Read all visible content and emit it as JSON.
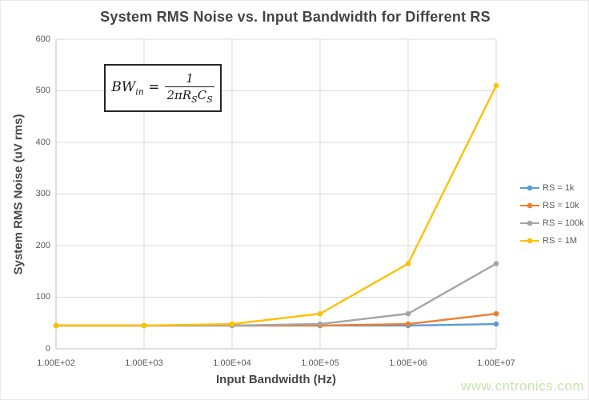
{
  "page": {
    "watermark": "www.cntronics.com"
  },
  "chart_data": {
    "type": "line",
    "title": "System RMS Noise vs. Input Bandwidth for Different RS",
    "xlabel": "Input Bandwidth (Hz)",
    "ylabel": "System RMS Noise (uV rms)",
    "x_scale": "log",
    "x": [
      100,
      1000,
      10000,
      100000,
      1000000,
      10000000
    ],
    "x_tick_labels": [
      "1.00E+02",
      "1.00E+03",
      "1.00E+04",
      "1.00E+05",
      "1.00E+06",
      "1.00E+07"
    ],
    "ylim": [
      0,
      600
    ],
    "y_ticks": [
      0,
      100,
      200,
      300,
      400,
      500,
      600
    ],
    "grid": true,
    "legend_position": "right",
    "marker": "circle",
    "series": [
      {
        "name": "RS = 1k",
        "color": "#5B9BD5",
        "values": [
          45,
          45,
          45,
          45,
          45,
          48
        ]
      },
      {
        "name": "RS = 10k",
        "color": "#ED7D31",
        "values": [
          45,
          45,
          45,
          45,
          48,
          68
        ]
      },
      {
        "name": "RS = 100k",
        "color": "#A5A5A5",
        "values": [
          45,
          45,
          45,
          48,
          68,
          165
        ]
      },
      {
        "name": "RS = 1M",
        "color": "#FFC000",
        "values": [
          45,
          45,
          48,
          68,
          165,
          510
        ]
      }
    ],
    "annotation": {
      "formula_text": "BW_in = 1 / (2*pi*RS*CS)"
    }
  },
  "formula": {
    "lhs_base": "BW",
    "lhs_sub": "in",
    "equals": "=",
    "numerator": "1",
    "den_coeff": "2π",
    "den_r": "R",
    "den_r_sub": "S",
    "den_c": "C",
    "den_c_sub": "S"
  },
  "colors": {
    "title_text": "#444444",
    "axis_text": "#595959",
    "gridline": "#D9D9D9",
    "axis_line": "#BFBFBF",
    "watermark": "#C5E3AE",
    "formula_border": "#262626"
  }
}
